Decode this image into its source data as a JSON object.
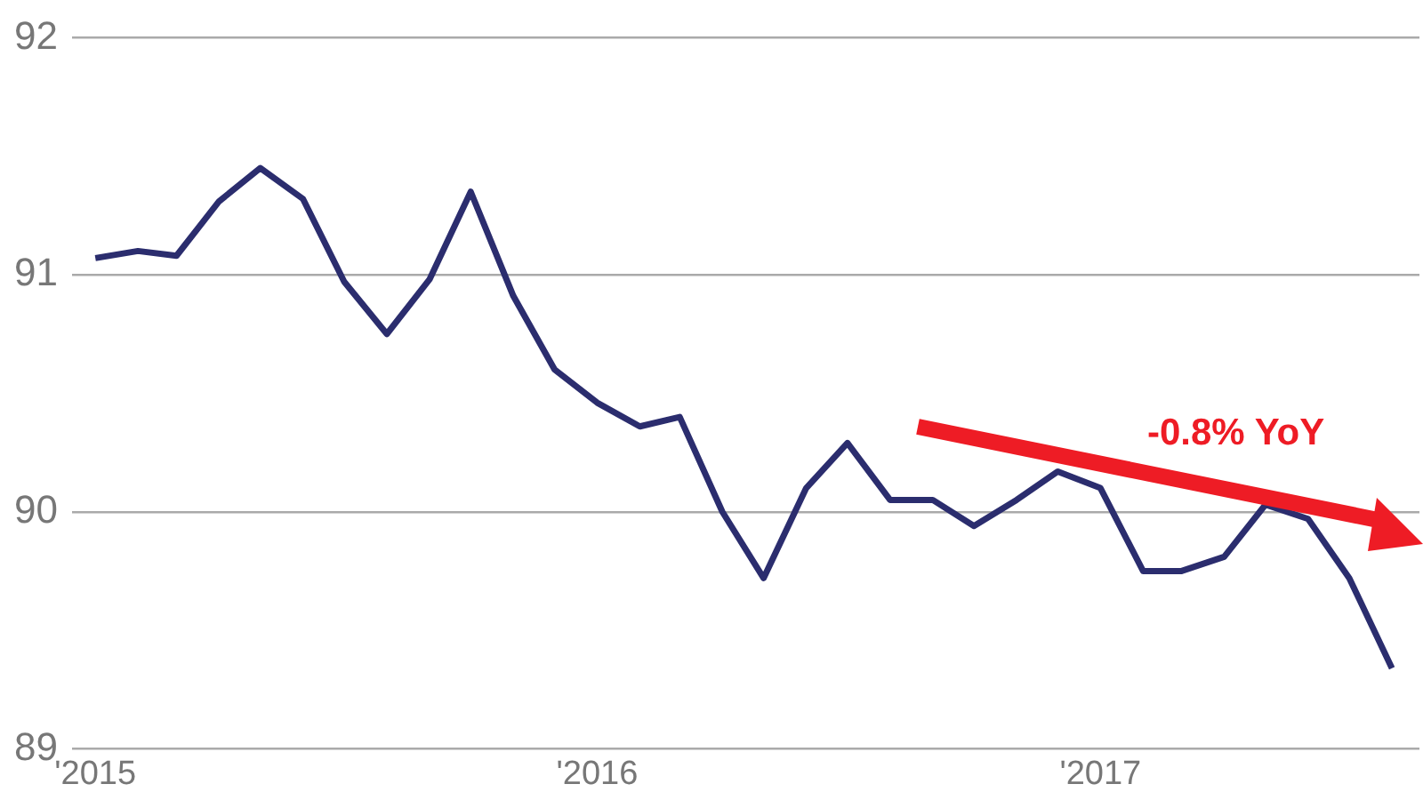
{
  "chart_data": {
    "type": "line",
    "x": [
      "2015-01",
      "2015-02",
      "2015-03",
      "2015-04",
      "2015-05",
      "2015-06",
      "2015-07",
      "2015-08",
      "2015-09",
      "2015-10",
      "2015-11",
      "2015-12",
      "2016-01",
      "2016-02",
      "2016-03",
      "2016-04",
      "2016-05",
      "2016-06",
      "2016-07",
      "2016-08",
      "2016-09",
      "2016-10",
      "2016-11",
      "2016-12",
      "2017-01",
      "2017-02",
      "2017-03",
      "2017-04",
      "2017-05",
      "2017-06",
      "2017-07",
      "2017-08"
    ],
    "series": [
      {
        "color": "#2b2d6e",
        "values": [
          91.07,
          91.1,
          91.08,
          91.31,
          91.45,
          91.32,
          90.97,
          90.75,
          90.98,
          91.35,
          90.91,
          90.6,
          90.46,
          90.36,
          90.4,
          90.0,
          89.72,
          90.1,
          90.29,
          90.05,
          90.05,
          89.94,
          90.05,
          90.17,
          90.1,
          89.75,
          89.75,
          89.81,
          90.03,
          89.97,
          89.72,
          89.34
        ]
      }
    ],
    "xlim": [
      "2014-12-15",
      "2017-08-21"
    ],
    "xticks": [
      {
        "value": "2015-01",
        "label": "'2015"
      },
      {
        "value": "2016-01",
        "label": "'2016"
      },
      {
        "value": "2017-01",
        "label": "'2017"
      }
    ],
    "ylim": [
      89,
      92
    ],
    "yticks": [
      89,
      90,
      91,
      92
    ],
    "grid": "y",
    "legend": false,
    "marker": "none",
    "line_style": "solid",
    "annotations": [
      "-0.8% YoY"
    ]
  }
}
